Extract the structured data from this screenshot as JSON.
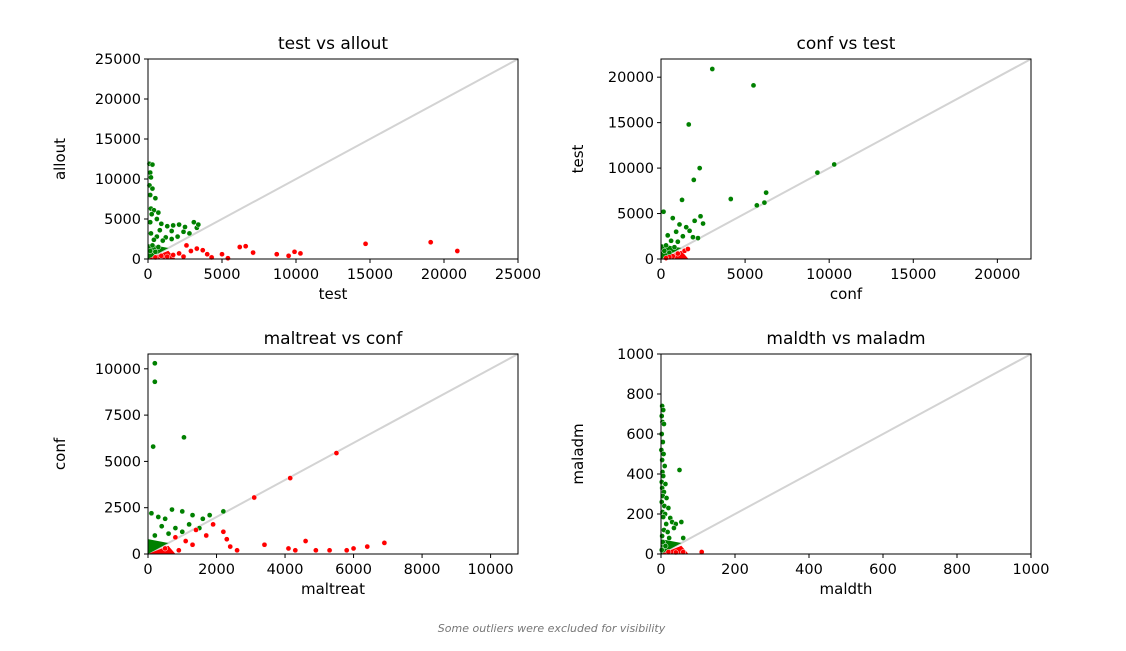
{
  "footnote": "Some outliers were excluded for visibility",
  "chart_data": [
    {
      "type": "scatter",
      "title": "test vs allout",
      "xlabel": "test",
      "ylabel": "allout",
      "xlim": [
        0,
        25000
      ],
      "ylim": [
        0,
        25000
      ],
      "xticks": [
        "0",
        "5000",
        "10000",
        "15000",
        "20000",
        "25000"
      ],
      "yticks": [
        "0",
        "5000",
        "10000",
        "15000",
        "20000",
        "25000"
      ],
      "reference_line": "y = x",
      "colors": {
        "above": "#008000",
        "below": "#ff0000",
        "line": "#d3d3d3"
      },
      "series": [
        {
          "color": "above",
          "points": [
            [
              100,
              11900
            ],
            [
              300,
              11800
            ],
            [
              150,
              10800
            ],
            [
              200,
              10200
            ],
            [
              100,
              9200
            ],
            [
              300,
              8800
            ],
            [
              150,
              8000
            ],
            [
              500,
              7600
            ],
            [
              200,
              6300
            ],
            [
              400,
              6100
            ],
            [
              700,
              5800
            ],
            [
              250,
              5600
            ],
            [
              600,
              5000
            ],
            [
              150,
              4600
            ],
            [
              900,
              4400
            ],
            [
              1300,
              4100
            ],
            [
              1700,
              4200
            ],
            [
              2100,
              4300
            ],
            [
              2500,
              4000
            ],
            [
              3100,
              4600
            ],
            [
              3300,
              3900
            ],
            [
              3400,
              4300
            ],
            [
              800,
              3600
            ],
            [
              1600,
              3500
            ],
            [
              2400,
              3400
            ],
            [
              2800,
              3200
            ],
            [
              200,
              3200
            ],
            [
              600,
              2800
            ],
            [
              1200,
              2700
            ],
            [
              2000,
              2800
            ],
            [
              400,
              2400
            ],
            [
              1000,
              2300
            ],
            [
              1600,
              2500
            ],
            [
              300,
              1700
            ],
            [
              700,
              1500
            ],
            [
              150,
              1000
            ],
            [
              500,
              900
            ]
          ]
        },
        {
          "color": "below",
          "points": [
            [
              2600,
              1700
            ],
            [
              2900,
              1000
            ],
            [
              3300,
              1300
            ],
            [
              3700,
              1100
            ],
            [
              4000,
              600
            ],
            [
              4300,
              200
            ],
            [
              5000,
              600
            ],
            [
              5400,
              100
            ],
            [
              6200,
              1500
            ],
            [
              6600,
              1600
            ],
            [
              7100,
              800
            ],
            [
              8700,
              600
            ],
            [
              9500,
              400
            ],
            [
              9900,
              900
            ],
            [
              10300,
              700
            ],
            [
              14700,
              1900
            ],
            [
              19100,
              2100
            ],
            [
              20900,
              1000
            ],
            [
              500,
              200
            ],
            [
              900,
              400
            ],
            [
              1300,
              300
            ],
            [
              1700,
              500
            ],
            [
              2100,
              700
            ],
            [
              2400,
              300
            ]
          ]
        }
      ]
    },
    {
      "type": "scatter",
      "title": "conf vs test",
      "xlabel": "conf",
      "ylabel": "test",
      "xlim": [
        0,
        22000
      ],
      "ylim": [
        0,
        22000
      ],
      "xticks": [
        "0",
        "5000",
        "10000",
        "15000",
        "20000"
      ],
      "yticks": [
        "0",
        "5000",
        "10000",
        "15000",
        "20000"
      ],
      "reference_line": "y = x",
      "colors": {
        "above": "#008000",
        "below": "#ff0000",
        "line": "#d3d3d3"
      },
      "series": [
        {
          "color": "above",
          "points": [
            [
              3050,
              20900
            ],
            [
              5500,
              19100
            ],
            [
              1650,
              14800
            ],
            [
              2300,
              10000
            ],
            [
              1950,
              8700
            ],
            [
              6250,
              7300
            ],
            [
              4150,
              6600
            ],
            [
              6150,
              6200
            ],
            [
              1250,
              6500
            ],
            [
              150,
              5200
            ],
            [
              700,
              4500
            ],
            [
              2350,
              4700
            ],
            [
              2000,
              4200
            ],
            [
              2500,
              3900
            ],
            [
              1100,
              3800
            ],
            [
              1500,
              3500
            ],
            [
              1700,
              3100
            ],
            [
              900,
              3000
            ],
            [
              400,
              2600
            ],
            [
              1300,
              2500
            ],
            [
              1900,
              2400
            ],
            [
              2200,
              2300
            ],
            [
              600,
              2000
            ],
            [
              1000,
              1900
            ],
            [
              300,
              1500
            ],
            [
              800,
              1300
            ],
            [
              200,
              900
            ],
            [
              500,
              700
            ],
            [
              9300,
              9500
            ],
            [
              10300,
              10400
            ],
            [
              5700,
              5900
            ]
          ]
        },
        {
          "color": "below",
          "points": [
            [
              700,
              300
            ],
            [
              1000,
              600
            ],
            [
              1400,
              900
            ],
            [
              1600,
              1100
            ],
            [
              500,
              200
            ],
            [
              300,
              100
            ]
          ]
        }
      ]
    },
    {
      "type": "scatter",
      "title": "maltreat vs conf",
      "xlabel": "maltreat",
      "ylabel": "conf",
      "xlim": [
        0,
        10800
      ],
      "ylim": [
        0,
        10800
      ],
      "xticks": [
        "0",
        "2000",
        "4000",
        "6000",
        "8000",
        "10000"
      ],
      "yticks": [
        "0",
        "2500",
        "5000",
        "7500",
        "10000"
      ],
      "reference_line": "y = x",
      "colors": {
        "above": "#008000",
        "below": "#ff0000",
        "line": "#d3d3d3"
      },
      "series": [
        {
          "color": "above",
          "points": [
            [
              200,
              10300
            ],
            [
              200,
              9300
            ],
            [
              1050,
              6300
            ],
            [
              150,
              5800
            ],
            [
              100,
              2200
            ],
            [
              300,
              2000
            ],
            [
              500,
              1900
            ],
            [
              700,
              2400
            ],
            [
              1000,
              2300
            ],
            [
              1300,
              2100
            ],
            [
              1600,
              1900
            ],
            [
              1800,
              2100
            ],
            [
              2200,
              2300
            ],
            [
              400,
              1500
            ],
            [
              800,
              1400
            ],
            [
              1200,
              1600
            ],
            [
              200,
              1000
            ],
            [
              600,
              1100
            ],
            [
              1000,
              1200
            ],
            [
              1500,
              1400
            ]
          ]
        },
        {
          "color": "below",
          "points": [
            [
              800,
              900
            ],
            [
              1100,
              700
            ],
            [
              1400,
              1300
            ],
            [
              1700,
              1000
            ],
            [
              1900,
              1600
            ],
            [
              2300,
              800
            ],
            [
              2400,
              400
            ],
            [
              2600,
              200
            ],
            [
              2200,
              1200
            ],
            [
              3400,
              500
            ],
            [
              4100,
              300
            ],
            [
              4300,
              200
            ],
            [
              4600,
              700
            ],
            [
              4900,
              200
            ],
            [
              5300,
              200
            ],
            [
              5800,
              200
            ],
            [
              6000,
              300
            ],
            [
              6400,
              400
            ],
            [
              6900,
              600
            ],
            [
              3100,
              3050
            ],
            [
              4150,
              4100
            ],
            [
              5500,
              5450
            ],
            [
              500,
              300
            ],
            [
              900,
              200
            ],
            [
              1300,
              500
            ]
          ]
        }
      ]
    },
    {
      "type": "scatter",
      "title": "maldth vs maladm",
      "xlabel": "maldth",
      "ylabel": "maladm",
      "xlim": [
        0,
        1000
      ],
      "ylim": [
        0,
        1000
      ],
      "xticks": [
        "0",
        "200",
        "400",
        "600",
        "800",
        "1000"
      ],
      "yticks": [
        "0",
        "200",
        "400",
        "600",
        "800",
        "1000"
      ],
      "reference_line": "y = x",
      "colors": {
        "above": "#008000",
        "below": "#ff0000",
        "line": "#d3d3d3"
      },
      "series": [
        {
          "color": "above",
          "points": [
            [
              3,
              740
            ],
            [
              6,
              720
            ],
            [
              2,
              690
            ],
            [
              4,
              660
            ],
            [
              8,
              650
            ],
            [
              2,
              600
            ],
            [
              5,
              560
            ],
            [
              1,
              520
            ],
            [
              7,
              500
            ],
            [
              3,
              470
            ],
            [
              10,
              440
            ],
            [
              4,
              410
            ],
            [
              6,
              390
            ],
            [
              2,
              360
            ],
            [
              12,
              350
            ],
            [
              3,
              330
            ],
            [
              8,
              310
            ],
            [
              5,
              290
            ],
            [
              15,
              280
            ],
            [
              2,
              260
            ],
            [
              9,
              240
            ],
            [
              20,
              230
            ],
            [
              4,
              210
            ],
            [
              11,
              200
            ],
            [
              6,
              185
            ],
            [
              25,
              180
            ],
            [
              30,
              160
            ],
            [
              14,
              150
            ],
            [
              50,
              420
            ],
            [
              55,
              160
            ],
            [
              40,
              150
            ],
            [
              35,
              130
            ],
            [
              8,
              120
            ],
            [
              18,
              110
            ],
            [
              3,
              90
            ],
            [
              22,
              80
            ],
            [
              60,
              80
            ],
            [
              5,
              60
            ],
            [
              12,
              40
            ],
            [
              2,
              20
            ]
          ]
        },
        {
          "color": "below",
          "points": [
            [
              60,
              10
            ],
            [
              110,
              10
            ],
            [
              20,
              10
            ],
            [
              40,
              8
            ]
          ]
        }
      ]
    }
  ]
}
